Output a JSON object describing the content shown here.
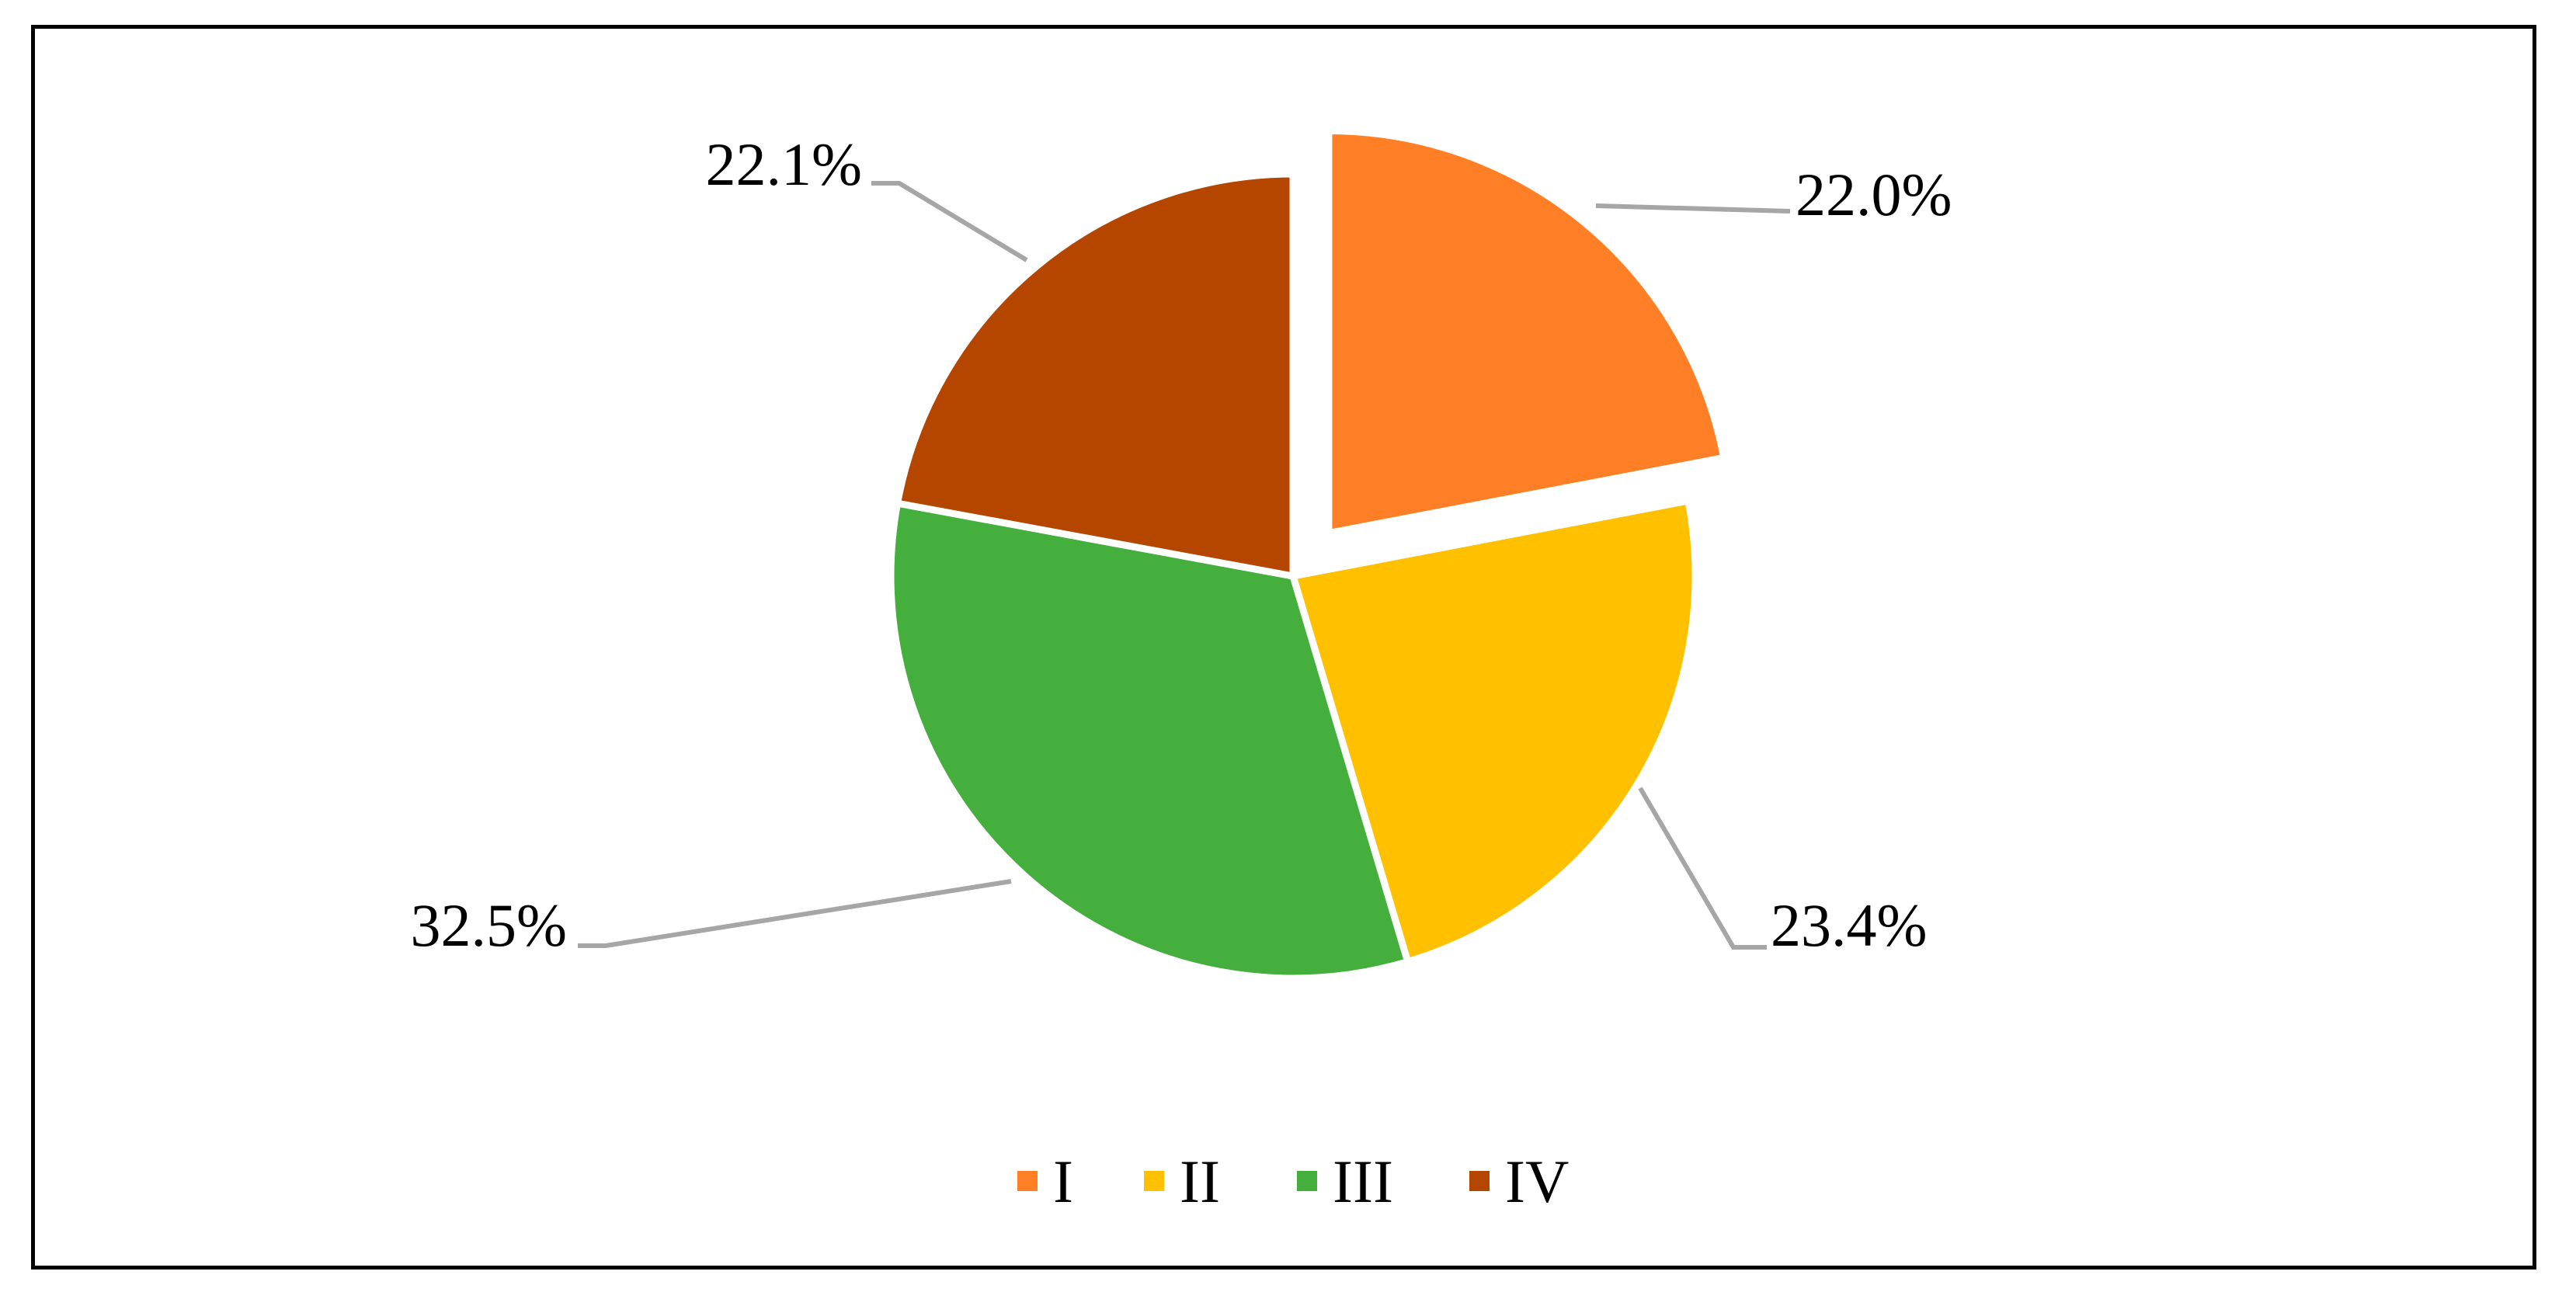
{
  "chart_data": {
    "type": "pie",
    "categories": [
      "I",
      "II",
      "III",
      "IV"
    ],
    "values": [
      22.0,
      23.4,
      32.5,
      22.1
    ],
    "labels": [
      "22.0%",
      "23.4%",
      "32.5%",
      "22.1%"
    ],
    "colors": [
      "#FF7F27",
      "#FFC000",
      "#44AF3D",
      "#B54600"
    ],
    "exploded": [
      "I"
    ],
    "legend": {
      "position": "bottom",
      "entries": [
        "I",
        "II",
        "III",
        "IV"
      ]
    },
    "title": ""
  }
}
